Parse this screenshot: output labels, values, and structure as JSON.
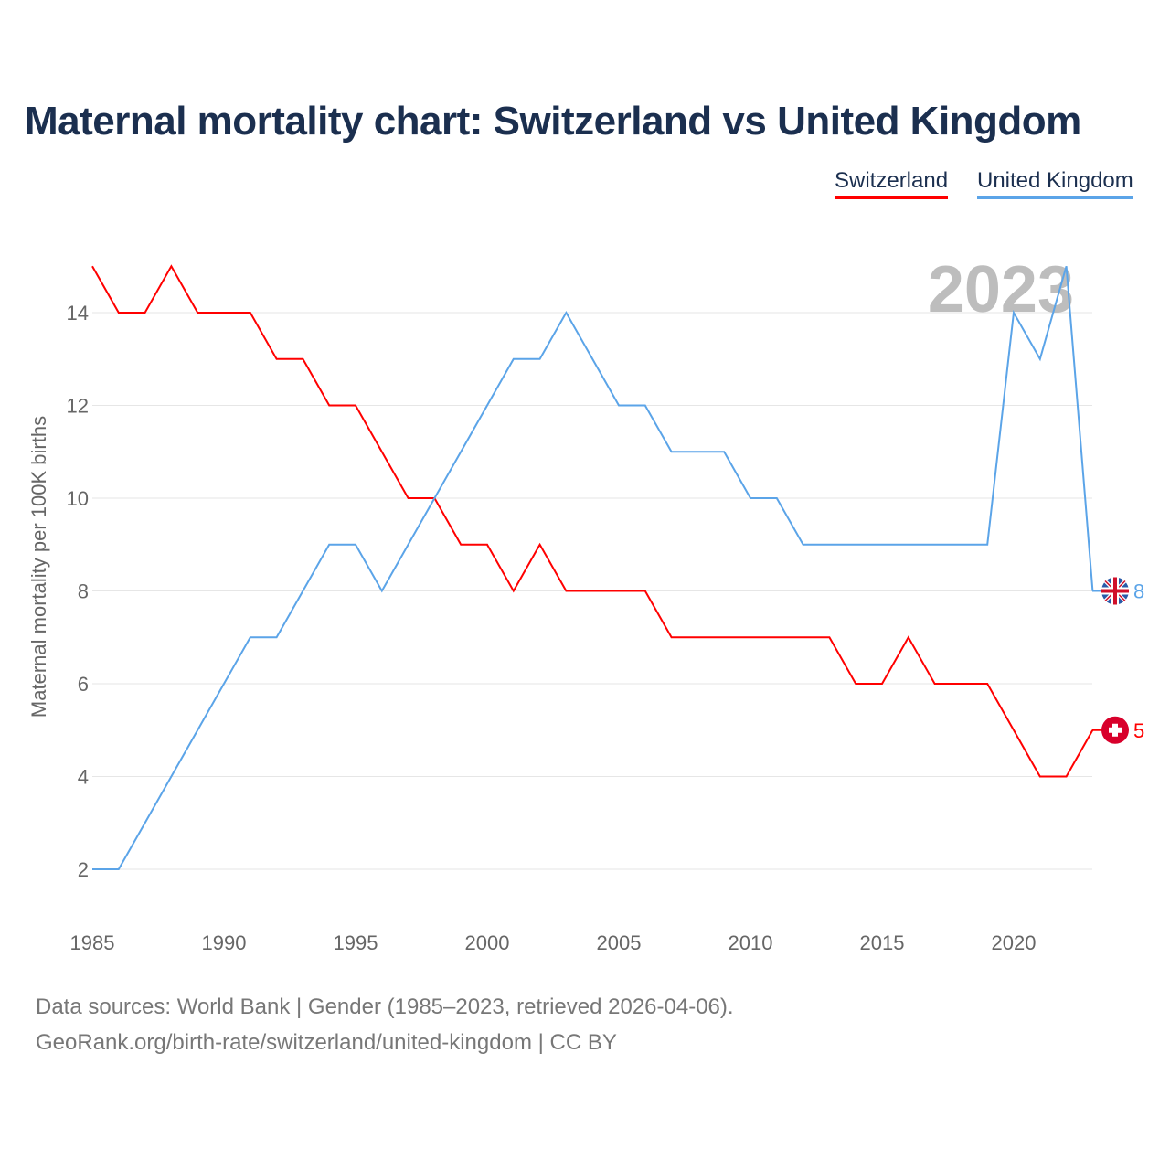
{
  "title": "Maternal mortality chart: Switzerland vs United Kingdom",
  "footer": {
    "line1": "Data sources: World Bank | Gender (1985–2023, retrieved 2026-04-06).",
    "line2": "GeoRank.org/birth-rate/switzerland/united-kingdom | CC BY"
  },
  "chart_data": {
    "type": "line",
    "title": "Maternal mortality chart: Switzerland vs United Kingdom",
    "xlabel": "",
    "ylabel": "Maternal mortality per 100K births",
    "year_label": "2023",
    "xlim": [
      1985,
      2023
    ],
    "ylim": [
      1,
      15.5
    ],
    "xticks": [
      1985,
      1990,
      1995,
      2000,
      2005,
      2010,
      2015,
      2020
    ],
    "yticks": [
      2,
      4,
      6,
      8,
      10,
      12,
      14
    ],
    "grid": true,
    "legend_position": "top-right",
    "x": [
      1985,
      1986,
      1987,
      1988,
      1989,
      1990,
      1991,
      1992,
      1993,
      1994,
      1995,
      1996,
      1997,
      1998,
      1999,
      2000,
      2001,
      2002,
      2003,
      2004,
      2005,
      2006,
      2007,
      2008,
      2009,
      2010,
      2011,
      2012,
      2013,
      2014,
      2015,
      2016,
      2017,
      2018,
      2019,
      2020,
      2021,
      2022,
      2023
    ],
    "series": [
      {
        "name": "Switzerland",
        "color": "#ff0000",
        "end_label": "5",
        "icon": "swiss-flag-icon",
        "values": [
          15,
          14,
          14,
          15,
          14,
          14,
          14,
          13,
          13,
          12,
          12,
          11,
          10,
          10,
          9,
          9,
          8,
          9,
          8,
          8,
          8,
          8,
          7,
          7,
          7,
          7,
          7,
          7,
          7,
          6,
          6,
          7,
          6,
          6,
          6,
          5,
          4,
          4,
          5
        ]
      },
      {
        "name": "United Kingdom",
        "color": "#5ba4e8",
        "end_label": "8",
        "icon": "uk-flag-icon",
        "values": [
          2,
          2,
          3,
          4,
          5,
          6,
          7,
          7,
          8,
          9,
          9,
          8,
          9,
          10,
          11,
          12,
          13,
          13,
          14,
          13,
          12,
          12,
          11,
          11,
          11,
          10,
          10,
          9,
          9,
          9,
          9,
          9,
          9,
          9,
          9,
          14,
          13,
          15,
          8
        ]
      }
    ]
  }
}
